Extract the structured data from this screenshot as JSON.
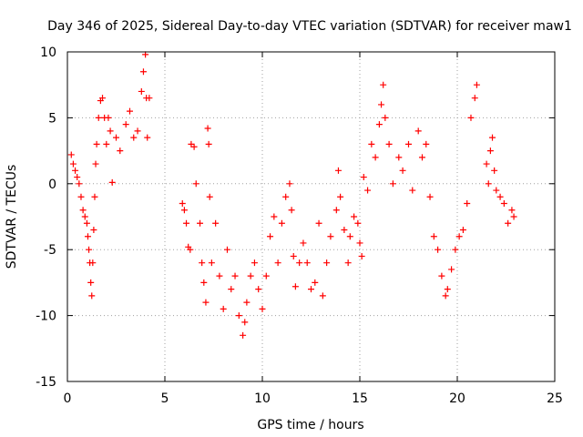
{
  "chart_data": {
    "type": "scatter",
    "title": "Day 346 of 2025, Sidereal Day-to-day VTEC variation (SDTVAR) for receiver maw1",
    "xlabel": "GPS time / hours",
    "ylabel": "SDTVAR / TECUs",
    "xlim": [
      0,
      25
    ],
    "ylim": [
      -15,
      10
    ],
    "x_ticks": [
      "0",
      "5",
      "10",
      "15",
      "20",
      "25"
    ],
    "y_ticks": [
      "10",
      "5",
      "0",
      "-5",
      "-10",
      "-15"
    ],
    "grid": true,
    "marker": "+",
    "color": "#ff0000",
    "series": [
      {
        "name": "SDTVAR",
        "points": [
          [
            0.2,
            2.2
          ],
          [
            0.3,
            1.5
          ],
          [
            0.4,
            1.0
          ],
          [
            0.5,
            0.5
          ],
          [
            0.6,
            0.0
          ],
          [
            0.7,
            -1.0
          ],
          [
            0.8,
            -2.0
          ],
          [
            0.9,
            -2.5
          ],
          [
            1.0,
            -3.0
          ],
          [
            1.05,
            -4.0
          ],
          [
            1.1,
            -5.0
          ],
          [
            1.15,
            -6.0
          ],
          [
            1.2,
            -7.5
          ],
          [
            1.25,
            -8.5
          ],
          [
            1.3,
            -6.0
          ],
          [
            1.35,
            -3.5
          ],
          [
            1.4,
            -1.0
          ],
          [
            1.45,
            1.5
          ],
          [
            1.5,
            3.0
          ],
          [
            1.6,
            5.0
          ],
          [
            1.7,
            6.3
          ],
          [
            1.8,
            6.5
          ],
          [
            1.9,
            5.0
          ],
          [
            2.0,
            3.0
          ],
          [
            2.1,
            5.0
          ],
          [
            2.2,
            4.0
          ],
          [
            2.3,
            0.1
          ],
          [
            2.5,
            3.5
          ],
          [
            2.7,
            2.5
          ],
          [
            3.0,
            4.5
          ],
          [
            3.2,
            5.5
          ],
          [
            3.4,
            3.5
          ],
          [
            3.6,
            4.0
          ],
          [
            3.8,
            7.0
          ],
          [
            3.9,
            8.5
          ],
          [
            4.0,
            9.8
          ],
          [
            4.05,
            6.5
          ],
          [
            4.1,
            3.5
          ],
          [
            4.2,
            6.5
          ],
          [
            5.9,
            -1.5
          ],
          [
            6.0,
            -2.0
          ],
          [
            6.1,
            -3.0
          ],
          [
            6.2,
            -4.8
          ],
          [
            6.3,
            -5.0
          ],
          [
            6.35,
            3.0
          ],
          [
            6.5,
            2.8
          ],
          [
            6.6,
            0.0
          ],
          [
            6.8,
            -3.0
          ],
          [
            6.9,
            -6.0
          ],
          [
            7.0,
            -7.5
          ],
          [
            7.1,
            -9.0
          ],
          [
            7.2,
            4.2
          ],
          [
            7.25,
            3.0
          ],
          [
            7.3,
            -1.0
          ],
          [
            7.4,
            -6.0
          ],
          [
            7.6,
            -3.0
          ],
          [
            7.8,
            -7.0
          ],
          [
            8.0,
            -9.5
          ],
          [
            8.2,
            -5.0
          ],
          [
            8.4,
            -8.0
          ],
          [
            8.6,
            -7.0
          ],
          [
            8.8,
            -10.0
          ],
          [
            9.0,
            -11.5
          ],
          [
            9.1,
            -10.5
          ],
          [
            9.2,
            -9.0
          ],
          [
            9.4,
            -7.0
          ],
          [
            9.6,
            -6.0
          ],
          [
            9.8,
            -8.0
          ],
          [
            10.0,
            -9.5
          ],
          [
            10.2,
            -7.0
          ],
          [
            10.4,
            -4.0
          ],
          [
            10.6,
            -2.5
          ],
          [
            10.8,
            -6.0
          ],
          [
            11.0,
            -3.0
          ],
          [
            11.2,
            -1.0
          ],
          [
            11.4,
            0.0
          ],
          [
            11.5,
            -2.0
          ],
          [
            11.6,
            -5.5
          ],
          [
            11.7,
            -7.8
          ],
          [
            11.9,
            -6.0
          ],
          [
            12.1,
            -4.5
          ],
          [
            12.3,
            -6.0
          ],
          [
            12.5,
            -8.0
          ],
          [
            12.7,
            -7.5
          ],
          [
            12.9,
            -3.0
          ],
          [
            13.1,
            -8.5
          ],
          [
            13.3,
            -6.0
          ],
          [
            13.5,
            -4.0
          ],
          [
            13.8,
            -2.0
          ],
          [
            13.9,
            1.0
          ],
          [
            14.0,
            -1.0
          ],
          [
            14.2,
            -3.5
          ],
          [
            14.4,
            -6.0
          ],
          [
            14.5,
            -4.0
          ],
          [
            14.7,
            -2.5
          ],
          [
            14.9,
            -3.0
          ],
          [
            15.0,
            -4.5
          ],
          [
            15.1,
            -5.5
          ],
          [
            15.2,
            0.5
          ],
          [
            15.4,
            -0.5
          ],
          [
            15.6,
            3.0
          ],
          [
            15.8,
            2.0
          ],
          [
            16.0,
            4.5
          ],
          [
            16.1,
            6.0
          ],
          [
            16.2,
            7.5
          ],
          [
            16.3,
            5.0
          ],
          [
            16.5,
            3.0
          ],
          [
            16.7,
            0.0
          ],
          [
            17.0,
            2.0
          ],
          [
            17.2,
            1.0
          ],
          [
            17.5,
            3.0
          ],
          [
            17.7,
            -0.5
          ],
          [
            18.0,
            4.0
          ],
          [
            18.2,
            2.0
          ],
          [
            18.4,
            3.0
          ],
          [
            18.6,
            -1.0
          ],
          [
            18.8,
            -4.0
          ],
          [
            19.0,
            -5.0
          ],
          [
            19.2,
            -7.0
          ],
          [
            19.4,
            -8.5
          ],
          [
            19.5,
            -8.0
          ],
          [
            19.7,
            -6.5
          ],
          [
            19.9,
            -5.0
          ],
          [
            20.1,
            -4.0
          ],
          [
            20.3,
            -3.5
          ],
          [
            20.5,
            -1.5
          ],
          [
            20.7,
            5.0
          ],
          [
            20.9,
            6.5
          ],
          [
            21.0,
            7.5
          ],
          [
            21.5,
            1.5
          ],
          [
            21.6,
            0.0
          ],
          [
            21.7,
            2.5
          ],
          [
            21.8,
            3.5
          ],
          [
            21.9,
            1.0
          ],
          [
            22.0,
            -0.5
          ],
          [
            22.2,
            -1.0
          ],
          [
            22.4,
            -1.5
          ],
          [
            22.6,
            -3.0
          ],
          [
            22.8,
            -2.0
          ],
          [
            22.9,
            -2.5
          ]
        ]
      }
    ]
  }
}
